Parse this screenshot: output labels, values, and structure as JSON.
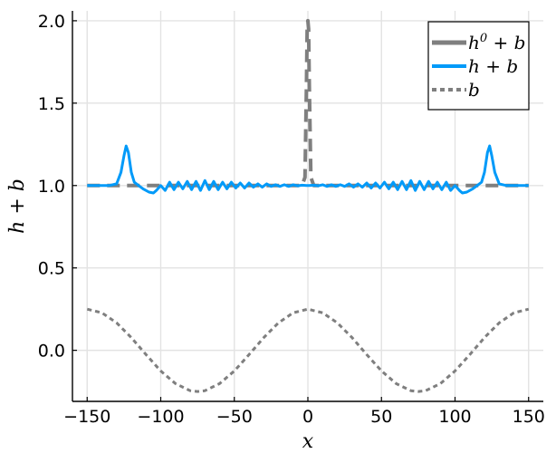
{
  "chart_data": {
    "type": "line",
    "xlabel": "x",
    "ylabel": "h + b",
    "xlim": [
      -160,
      160
    ],
    "ylim": [
      -0.31,
      2.06
    ],
    "xticks": [
      -150,
      -100,
      -50,
      0,
      50,
      100,
      150
    ],
    "xtick_labels": [
      "−150",
      "−100",
      "−50",
      "0",
      "50",
      "100",
      "150"
    ],
    "yticks": [
      0.0,
      0.5,
      1.0,
      1.5,
      2.0
    ],
    "ytick_labels": [
      "0.0",
      "0.5",
      "1.0",
      "1.5",
      "2.0"
    ],
    "grid": true,
    "legend_position": "top-right",
    "series": [
      {
        "name": "h⁰ + b",
        "label_base": "h",
        "label_sup": "0",
        "label_tail": " + b",
        "color": "#7f7f7f",
        "style": "dashed-solid",
        "x": [
          -150,
          -110,
          -102,
          -50,
          -8,
          -4,
          -2,
          -1,
          -0.5,
          0,
          0.5,
          1,
          2,
          4,
          8,
          50,
          102,
          110,
          150
        ],
        "y": [
          1.0,
          1.0,
          1.0,
          1.0,
          1.0,
          1.0,
          1.05,
          1.6,
          1.95,
          2.0,
          1.95,
          1.6,
          1.05,
          1.0,
          1.0,
          1.0,
          1.0,
          1.0,
          1.0
        ]
      },
      {
        "name": "h + b",
        "color": "#009af9",
        "style": "solid",
        "x": [
          -150,
          -135,
          -130,
          -127,
          -125,
          -123.5,
          -122,
          -120,
          -118,
          -115,
          -112,
          -108,
          -105,
          -103,
          -100,
          -97,
          -94,
          -91,
          -88,
          -85,
          -82,
          -79,
          -76,
          -73,
          -70,
          -67,
          -64,
          -61,
          -58,
          -55,
          -52,
          -49,
          -46,
          -43,
          -40,
          -37,
          -34,
          -31,
          -28,
          -25,
          -22,
          -19,
          -16,
          -13,
          -10,
          -7,
          -4,
          -1,
          0,
          1,
          4,
          7,
          10,
          13,
          16,
          19,
          22,
          25,
          28,
          31,
          34,
          37,
          40,
          43,
          46,
          49,
          52,
          55,
          58,
          61,
          64,
          67,
          70,
          73,
          76,
          79,
          82,
          85,
          88,
          91,
          94,
          97,
          100,
          103,
          105,
          108,
          112,
          115,
          118,
          120,
          122,
          123.5,
          125,
          127,
          130,
          135,
          150
        ],
        "y": [
          1.0,
          1.0,
          1.01,
          1.08,
          1.18,
          1.24,
          1.2,
          1.08,
          1.02,
          1.0,
          0.98,
          0.96,
          0.955,
          0.97,
          1.0,
          0.97,
          1.02,
          0.975,
          1.02,
          0.98,
          1.025,
          0.975,
          1.025,
          0.97,
          1.03,
          0.975,
          1.025,
          0.975,
          1.02,
          0.98,
          1.02,
          0.985,
          1.015,
          0.985,
          1.015,
          0.99,
          1.01,
          0.99,
          1.01,
          0.995,
          1.005,
          0.995,
          1.005,
          0.995,
          1.005,
          0.998,
          1.002,
          1.0,
          1.0,
          1.0,
          1.002,
          0.998,
          1.005,
          0.995,
          1.005,
          0.995,
          1.005,
          0.995,
          1.01,
          0.99,
          1.01,
          0.99,
          1.015,
          0.985,
          1.015,
          0.985,
          1.02,
          0.98,
          1.02,
          0.975,
          1.025,
          0.975,
          1.03,
          0.97,
          1.025,
          0.975,
          1.025,
          0.98,
          1.02,
          0.975,
          1.02,
          0.97,
          1.0,
          0.97,
          0.955,
          0.96,
          0.98,
          1.0,
          1.02,
          1.08,
          1.2,
          1.24,
          1.18,
          1.08,
          1.01,
          1.0,
          1.0
        ]
      },
      {
        "name": "b",
        "color": "#7f7f7f",
        "style": "dotted",
        "function": "0.25*cos(2*pi*x/150)",
        "x": [
          -150,
          -140,
          -130,
          -120,
          -110,
          -100,
          -90,
          -80,
          -75,
          -70,
          -60,
          -50,
          -40,
          -30,
          -20,
          -10,
          0,
          10,
          20,
          30,
          40,
          50,
          60,
          70,
          75,
          80,
          90,
          100,
          110,
          120,
          130,
          140,
          150
        ],
        "y": [
          0.25,
          0.228,
          0.167,
          0.077,
          -0.026,
          -0.125,
          -0.202,
          -0.245,
          -0.25,
          -0.245,
          -0.202,
          -0.125,
          -0.026,
          0.077,
          0.167,
          0.228,
          0.25,
          0.228,
          0.167,
          0.077,
          -0.026,
          -0.125,
          -0.202,
          -0.245,
          -0.25,
          -0.245,
          -0.202,
          -0.125,
          -0.026,
          0.077,
          0.167,
          0.228,
          0.25
        ]
      }
    ]
  }
}
